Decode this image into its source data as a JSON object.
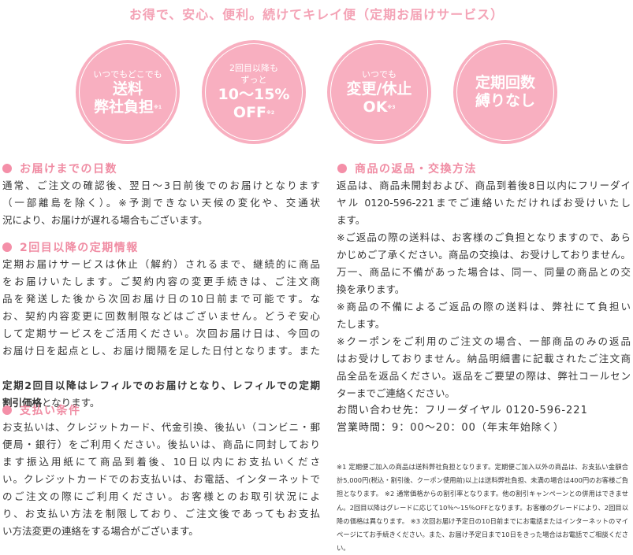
{
  "title": "お得で、安心、便利。続けてキレイ便（定期お届けサービス）",
  "badges": [
    {
      "small": "いつでもどこでも",
      "big1": "送料",
      "big2": "弊社負担",
      "note": "※1"
    },
    {
      "small1": "2回目以降も",
      "small2": "ずっと",
      "big1": "10～15%",
      "big2": "OFF",
      "note": "※2"
    },
    {
      "small": "いつでも",
      "big1": "変更/休止",
      "big2": "OK",
      "note": "※3"
    },
    {
      "big1": "定期回数",
      "big2": "縛りなし"
    }
  ],
  "colors": {
    "badge": "#f8afc0",
    "heading": "#f08ca3",
    "title": "#f4a3b6"
  },
  "sections": {
    "delivery": {
      "heading": "お届けまでの日数",
      "lines": [
        "通常、ご注文の確認後、翌日～3日前後でのお届けとなります",
        "（一部離島を除く）。※予測できない天候の変化や、交通状",
        "況により、お届けが遅れる場合もございます。"
      ]
    },
    "subscription": {
      "heading": "2回目以降の定期情報",
      "lines": [
        "定期お届けサービスは休止（解約）されるまで、継続的に商品",
        "をお届けいたします。ご契約内容の変更手続きは、ご注文商",
        "品を発送した後から次回お届け日の10日前まで可能です。な",
        "お、契約内容変更に回数制限などはございません。どうぞ安心",
        "して定期サービスをご活用ください。次回お届け日は、今回の",
        "お届け日を起点とし、お届け間隔を足した日付となります。また"
      ],
      "bold_line": "定期2回目以降はレフィルでのお届けとなり、レフィルでの定期",
      "bold_tail": "割引価格",
      "tail": "となります。"
    },
    "payment": {
      "heading": "支払い条件",
      "lines": [
        "お支払いは、クレジットカード、代金引換、後払い（コンビニ・郵",
        "便局・銀行）をご利用ください。後払いは、商品に同封しており",
        "ます振込用紙にて商品到着後、10日以内にお支払いくださ",
        "い。クレジットカードでのお支払いは、お電話、インターネットで",
        "のご注文の際にご利用ください。お客様とのお取引状況によ",
        "り、お支払い方法を制限しており、ご注文後であってもお支払",
        "い方法変更の連絡をする場合がございます。"
      ]
    },
    "returns": {
      "heading": "商品の返品・交換方法",
      "lines": [
        "返品は、商品未開封および、商品到着後8日以内にフリーダイ",
        "ヤル 0120-596-221までご連絡いただければお受けいたし",
        "ます。",
        "※ご返品の際の送料は、お客様のご負担となりますので、あら",
        "かじめご了承ください。商品の交換は、お受けしておりません。",
        "万一、商品に不備があった場合は、同一、同量の商品との交",
        "換を承ります。",
        "※商品の不備によるご返品の際の送料は、弊社にて負担い",
        "たします。",
        "※クーポンをご利用のご注文の場合、一部商品のみの返品",
        "はお受けしておりません。納品明細書に記載されたご注文商",
        "品全品を返品ください。返品をご要望の際は、弊社コールセン",
        "ターまでご連絡ください。"
      ]
    }
  },
  "contact": {
    "phone": "お問い合わせ先：フリーダイヤル 0120-596-221",
    "hours": "営業時間：9：00～20：00（年末年始除く）"
  },
  "footnote": "※1 定期便ご加入の商品は送料弊社負担となります。定期便ご加入以外の商品は、お支払い金額合計5,000円(税込・割引後、クーポン使用前)以上は送料弊社負担、未満の場合は400円のお客様ご負担となります。 ※2 通常価格からの割引率となります。他の割引キャンペーンとの併用はできません。2回目以降はグレードに応じて10％～15％OFFとなります。お客様のグレードにより、2回目以降の価格は異なります。 ※3 次回お届け予定日の10日前までにお電話またはインターネットのマイページにてお手続きください。また、お届け予定日まで10日をきった場合はお電話でご相談ください。"
}
